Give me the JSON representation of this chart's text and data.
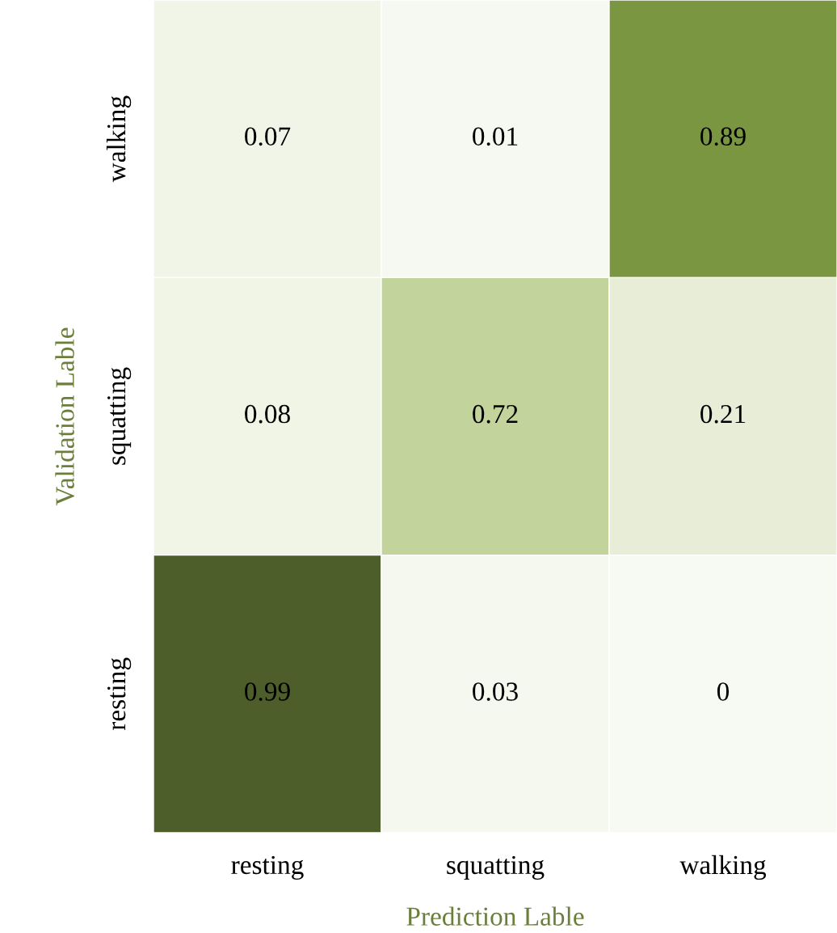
{
  "chart_data": {
    "type": "heatmap",
    "xlabel": "Prediction Lable",
    "ylabel": "Validation Lable",
    "categories": [
      "resting",
      "squatting",
      "walking"
    ],
    "y_categories": [
      "walking",
      "squatting",
      "resting"
    ],
    "cells": [
      [
        0.07,
        0.01,
        0.89
      ],
      [
        0.08,
        0.72,
        0.21
      ],
      [
        0.99,
        0.03,
        0
      ]
    ],
    "data_labels": true
  }
}
